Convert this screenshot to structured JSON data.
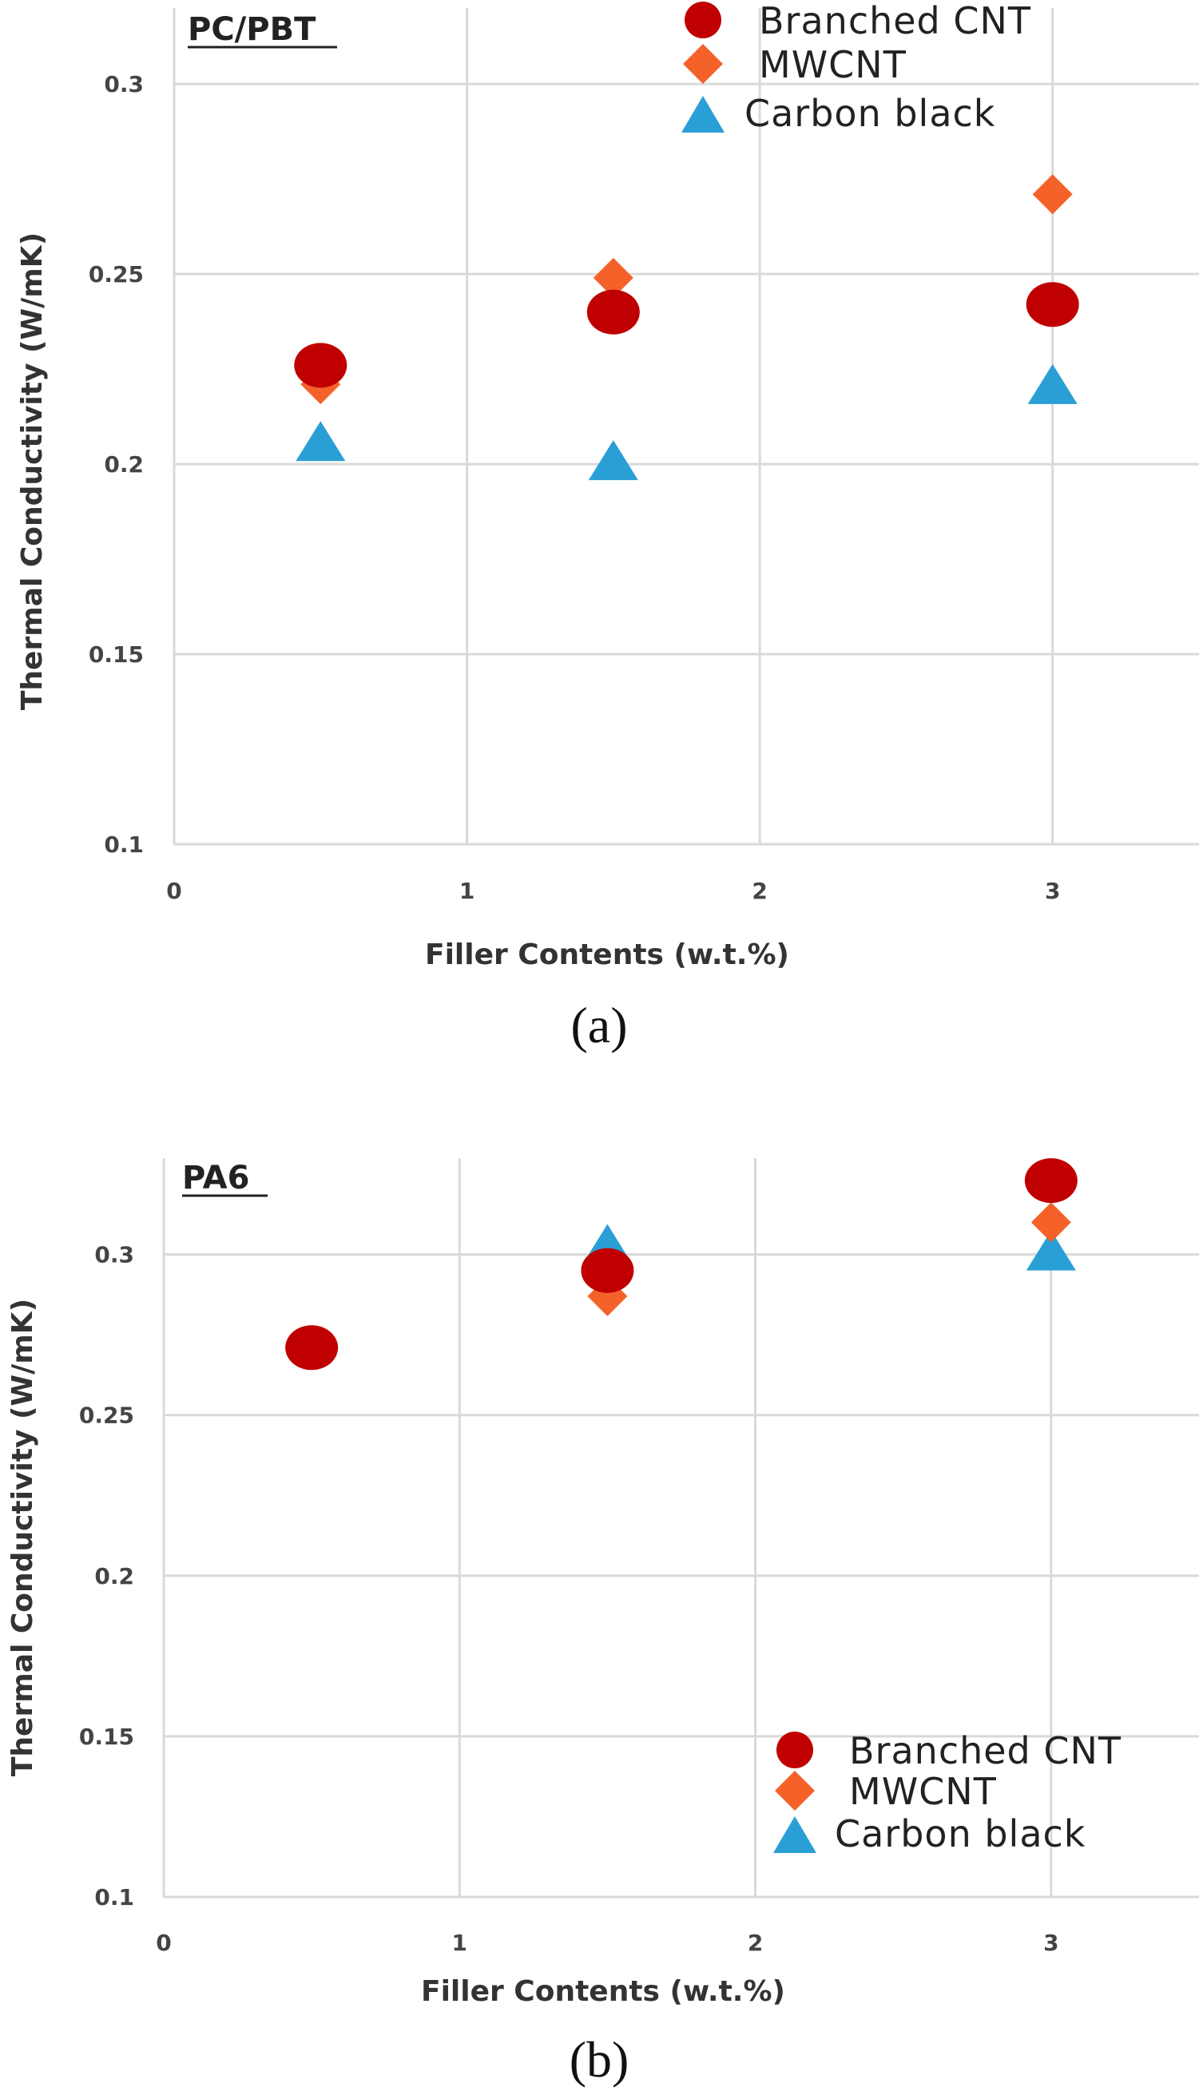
{
  "colors": {
    "branched_cnt": "#c00000",
    "mwcnt": "#f4622a",
    "carbon_black": "#2a9fd6",
    "grid": "#d9d9d9"
  },
  "chart_data": [
    {
      "type": "scatter",
      "panel_label": "PC/PBT",
      "caption": "(a)",
      "xlabel": "Filler Contents (w.t.%)",
      "ylabel": "Thermal Conductivity (W/mK)",
      "xlim": [
        0,
        3.5
      ],
      "ylim": [
        0.1,
        0.32
      ],
      "x_ticks": [
        0,
        1,
        2,
        3
      ],
      "x_tick_labels": [
        "0",
        "1",
        "2",
        "3"
      ],
      "y_ticks": [
        0.1,
        0.15,
        0.2,
        0.25,
        0.3
      ],
      "y_tick_labels": [
        "0.1",
        "0.15",
        "0.2",
        "0.25",
        "0.3"
      ],
      "legend_position": "top-right",
      "series": [
        {
          "name": "Branched CNT",
          "marker": "circle",
          "x": [
            0.5,
            1.5,
            3
          ],
          "y": [
            0.226,
            0.24,
            0.242
          ]
        },
        {
          "name": "MWCNT",
          "marker": "diamond",
          "x": [
            0.5,
            1.5,
            3
          ],
          "y": [
            0.221,
            0.249,
            0.271
          ]
        },
        {
          "name": "Carbon black",
          "marker": "triangle",
          "x": [
            0.5,
            1.5,
            3
          ],
          "y": [
            0.205,
            0.2,
            0.22
          ]
        }
      ]
    },
    {
      "type": "scatter",
      "panel_label": "PA6",
      "caption": "(b)",
      "xlabel": "Filler Contents (w.t.%)",
      "ylabel": "Thermal Conductivity (W/mK)",
      "xlim": [
        0,
        3.5
      ],
      "ylim": [
        0.1,
        0.33
      ],
      "x_ticks": [
        0,
        1,
        2,
        3
      ],
      "x_tick_labels": [
        "0",
        "1",
        "2",
        "3"
      ],
      "y_ticks": [
        0.1,
        0.15,
        0.2,
        0.25,
        0.3
      ],
      "y_tick_labels": [
        "0.1",
        "0.15",
        "0.2",
        "0.25",
        "0.3"
      ],
      "legend_position": "bottom-right",
      "series": [
        {
          "name": "Branched CNT",
          "marker": "circle",
          "x": [
            0.5,
            1.5,
            3
          ],
          "y": [
            0.271,
            0.295,
            0.323
          ]
        },
        {
          "name": "MWCNT",
          "marker": "diamond",
          "x": [
            1.5,
            3
          ],
          "y": [
            0.287,
            0.31
          ]
        },
        {
          "name": "Carbon black",
          "marker": "triangle",
          "x": [
            1.5,
            3
          ],
          "y": [
            0.302,
            0.3
          ]
        }
      ]
    }
  ]
}
